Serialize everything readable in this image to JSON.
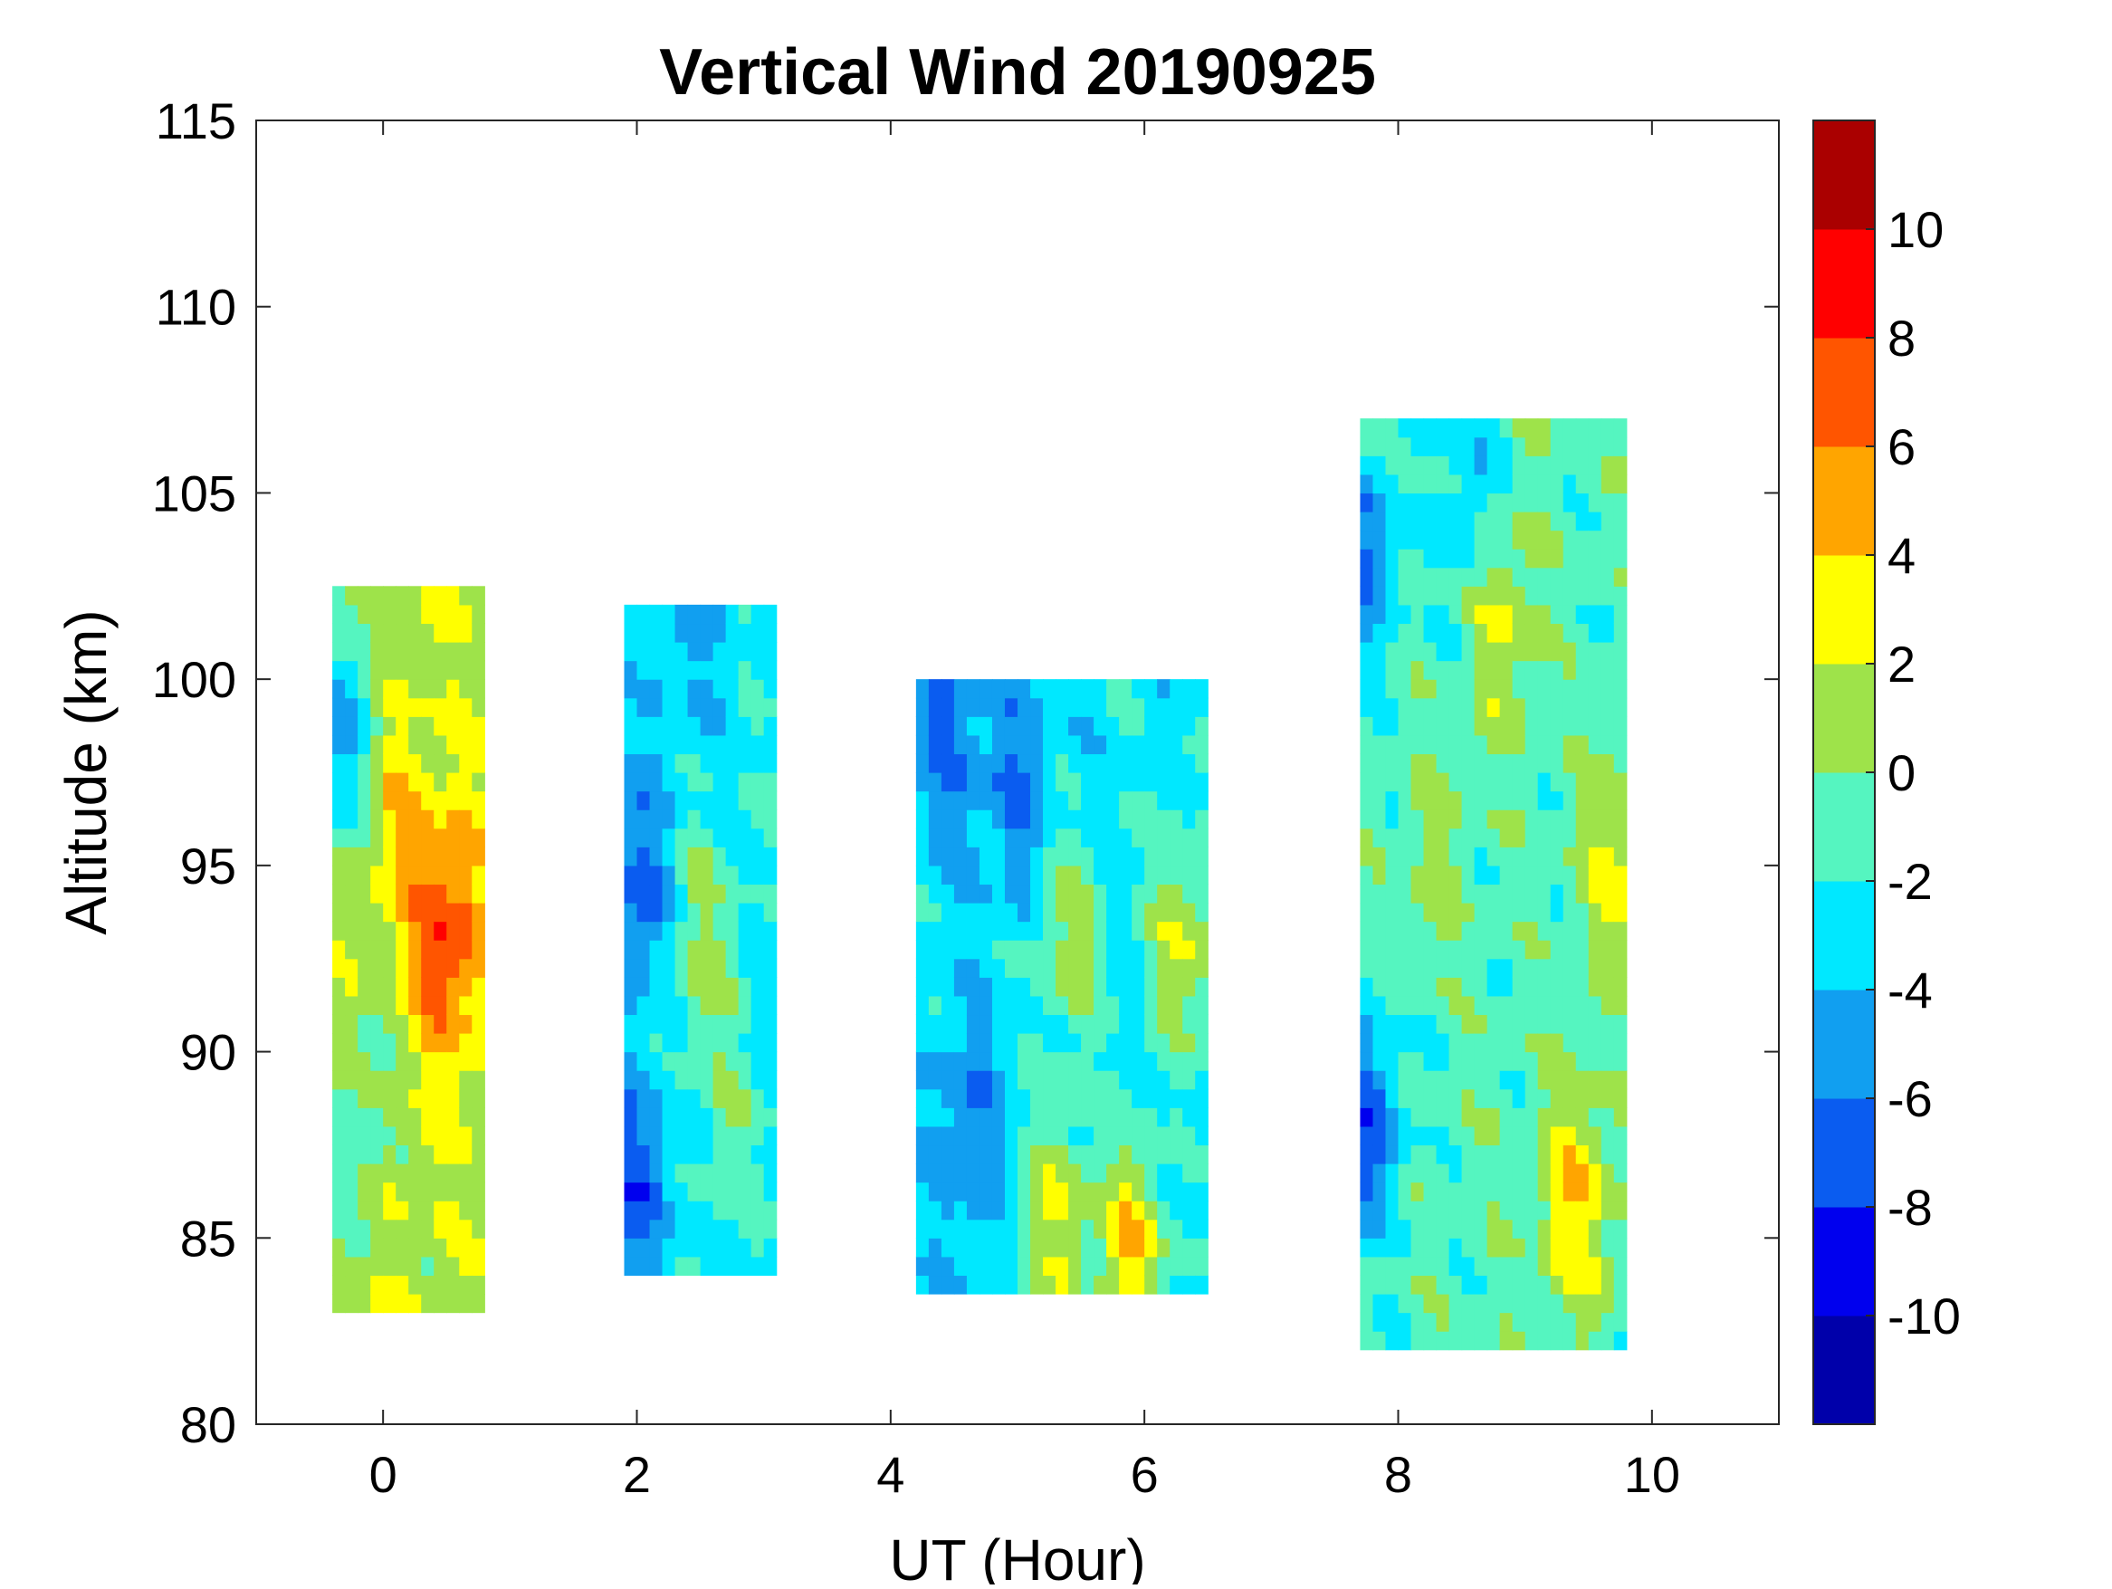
{
  "chart_data": {
    "type": "heatmap",
    "subtype": "filled-contour",
    "title": "Vertical Wind 20190925",
    "xlabel": "UT (Hour)",
    "ylabel": "Altitude (km)",
    "xlim": [
      -1,
      11
    ],
    "ylim": [
      80,
      115
    ],
    "xticks": [
      0,
      2,
      4,
      6,
      8,
      10
    ],
    "xtick_labels": [
      "0",
      "2",
      "4",
      "6",
      "8",
      "10"
    ],
    "yticks": [
      80,
      85,
      90,
      95,
      100,
      105,
      110,
      115
    ],
    "ytick_labels": [
      "80",
      "85",
      "90",
      "95",
      "100",
      "105",
      "110",
      "115"
    ],
    "colorbar": {
      "range": [
        -12,
        12
      ],
      "levels": [
        -12,
        -10,
        -8,
        -6,
        -4,
        -2,
        0,
        2,
        4,
        6,
        8,
        10,
        12
      ],
      "colors": [
        "#0000aa",
        "#0000ee",
        "#0a5cf0",
        "#119ff0",
        "#00e8ff",
        "#55f5c0",
        "#9ee34a",
        "#ffff00",
        "#ffa500",
        "#ff5500",
        "#ff0000",
        "#aa0000"
      ],
      "ticks": [
        -10,
        -8,
        -6,
        -4,
        -2,
        0,
        2,
        4,
        6,
        8,
        10
      ],
      "tick_labels": [
        "-10",
        "-8",
        "-6",
        "-4",
        "-2",
        "0",
        "2",
        "4",
        "6",
        "8",
        "10"
      ]
    },
    "segments": [
      {
        "name": "segment-1",
        "t_range": [
          -0.4,
          0.8
        ],
        "alt_range": [
          83,
          102.5
        ],
        "base": 1.5,
        "hotspots": [
          {
            "t": 0.5,
            "alt": 93,
            "value": 8
          },
          {
            "t": 0.1,
            "alt": 96.5,
            "value": 4
          },
          {
            "t": -0.05,
            "alt": 87.5,
            "value": 3.5
          },
          {
            "t": -0.3,
            "alt": 98.5,
            "value": -4.5
          },
          {
            "t": -0.15,
            "alt": 88,
            "value": -3
          }
        ]
      },
      {
        "name": "segment-2",
        "t_range": [
          1.9,
          3.1
        ],
        "alt_range": [
          84,
          102
        ],
        "base": -2.5,
        "hotspots": [
          {
            "t": 2.0,
            "alt": 94.5,
            "value": -7
          },
          {
            "t": 2.0,
            "alt": 86.5,
            "value": -7
          },
          {
            "t": 2.4,
            "alt": 101,
            "value": -4.5
          },
          {
            "t": 2.5,
            "alt": 93,
            "value": 0.5
          },
          {
            "t": 2.7,
            "alt": 88,
            "value": -0.5
          }
        ]
      },
      {
        "name": "segment-3",
        "t_range": [
          4.2,
          6.5
        ],
        "alt_range": [
          83.5,
          100
        ],
        "base": -3,
        "hotspots": [
          {
            "t": 4.45,
            "alt": 99,
            "value": -6.5
          },
          {
            "t": 5.0,
            "alt": 97,
            "value": -6
          },
          {
            "t": 5.4,
            "alt": 93,
            "value": 1
          },
          {
            "t": 6.3,
            "alt": 93,
            "value": 2
          },
          {
            "t": 5.9,
            "alt": 84.5,
            "value": 4
          },
          {
            "t": 5.3,
            "alt": 85.5,
            "value": 2
          },
          {
            "t": 4.6,
            "alt": 88,
            "value": -6
          }
        ]
      },
      {
        "name": "segment-4",
        "t_range": [
          7.7,
          9.8
        ],
        "alt_range": [
          82,
          107
        ],
        "base": -1,
        "hotspots": [
          {
            "t": 7.75,
            "alt": 88,
            "value": -7
          },
          {
            "t": 7.75,
            "alt": 103.5,
            "value": -6
          },
          {
            "t": 8.6,
            "alt": 104.5,
            "value": -4.5
          },
          {
            "t": 8.8,
            "alt": 102,
            "value": 3
          },
          {
            "t": 9.4,
            "alt": 86,
            "value": 4
          },
          {
            "t": 8.3,
            "alt": 95,
            "value": 0.5
          },
          {
            "t": 9.7,
            "alt": 95,
            "value": 2.5
          }
        ]
      }
    ]
  }
}
